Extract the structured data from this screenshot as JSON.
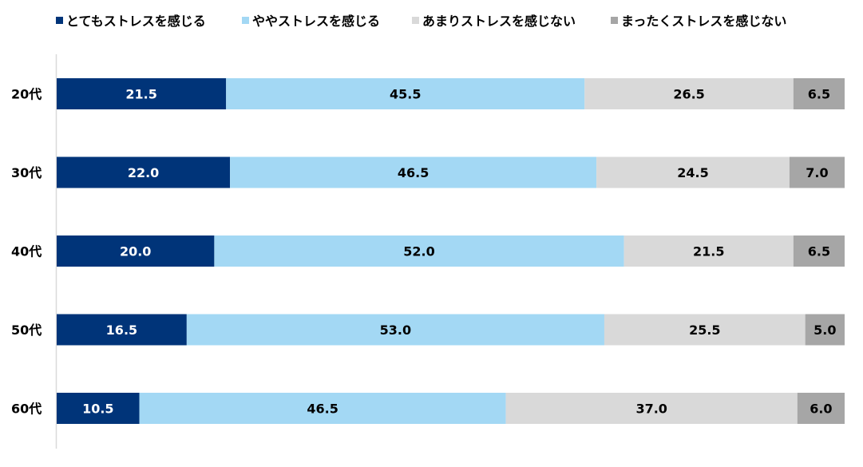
{
  "chart_data": {
    "type": "bar",
    "orientation": "horizontal",
    "stacked": true,
    "categories": [
      "20代",
      "30代",
      "40代",
      "50代",
      "60代"
    ],
    "series": [
      {
        "name": "とてもストレスを感じる",
        "values": [
          21.5,
          22.0,
          20.0,
          16.5,
          10.5
        ],
        "color": "#003479",
        "label_color": "#ffffff"
      },
      {
        "name": "ややストレスを感じる",
        "values": [
          45.5,
          46.5,
          52.0,
          53.0,
          46.5
        ],
        "color": "#a3d8f4",
        "label_color": "#000000"
      },
      {
        "name": "あまりストレスを感じない",
        "values": [
          26.5,
          24.5,
          21.5,
          25.5,
          37.0
        ],
        "color": "#d9d9d9",
        "label_color": "#000000"
      },
      {
        "name": "まったくストレスを感じない",
        "values": [
          6.5,
          7.0,
          6.5,
          5.0,
          6.0
        ],
        "color": "#a6a6a6",
        "label_color": "#000000"
      }
    ],
    "value_format": "0.0",
    "xlim": [
      0,
      100
    ],
    "legend_position": "top",
    "grid": false
  }
}
